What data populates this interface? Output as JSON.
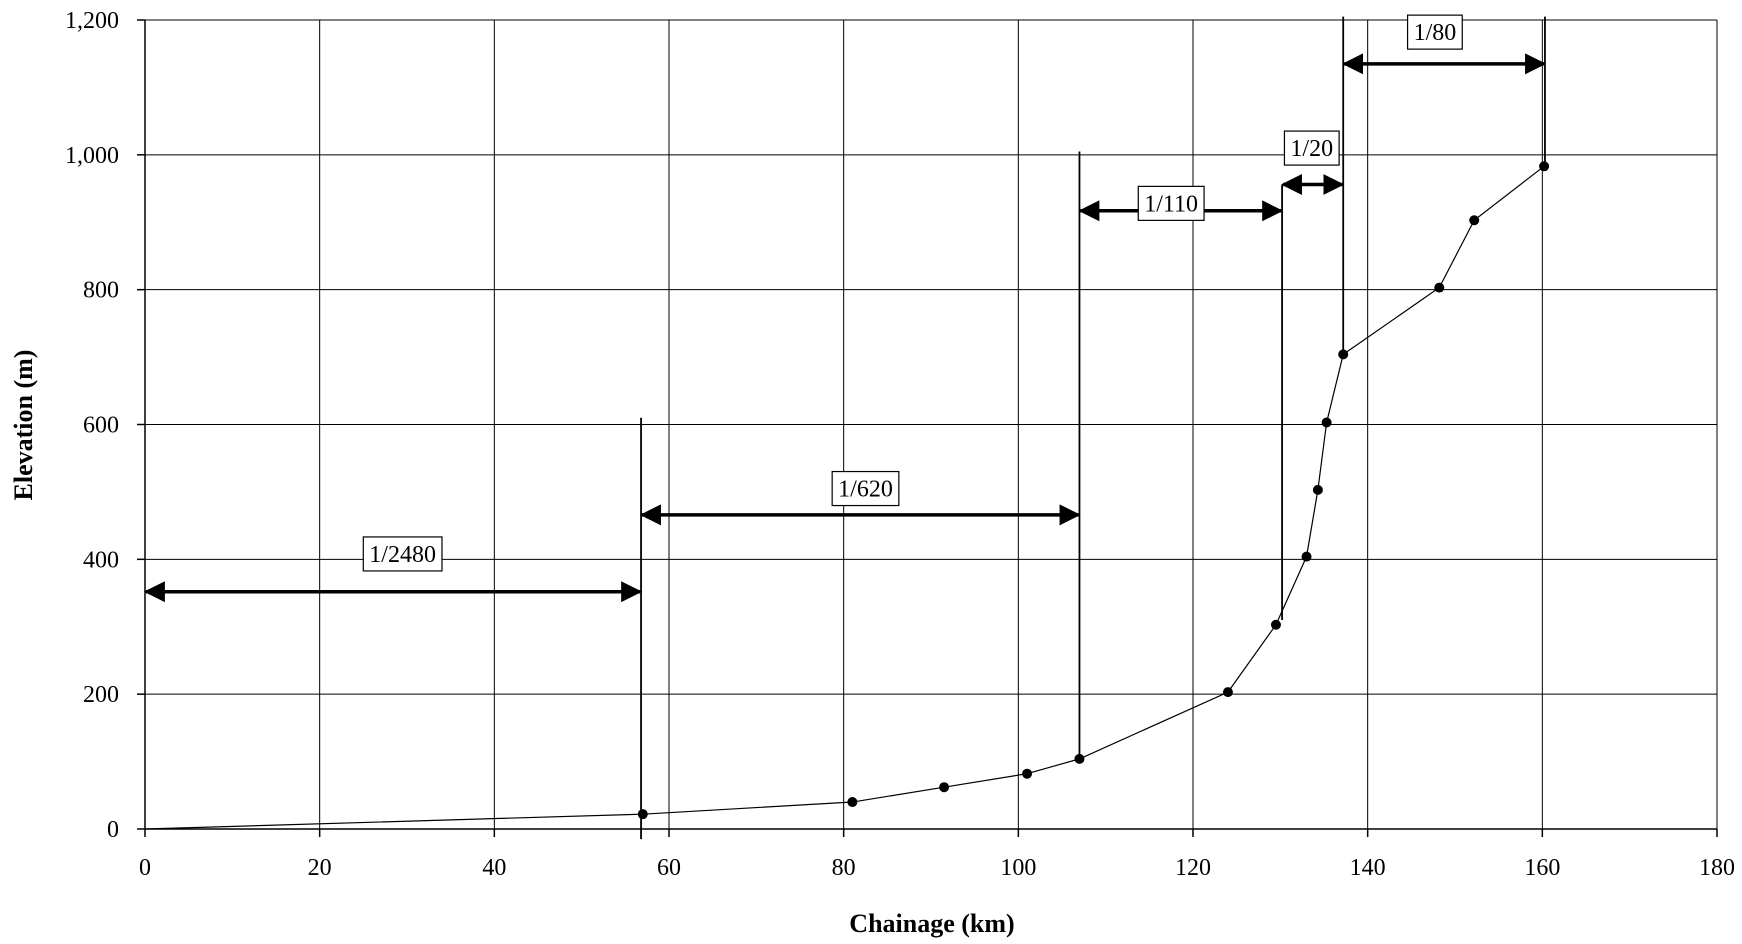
{
  "chart_data": {
    "type": "line",
    "title": "",
    "xlabel": "Chainage (km)",
    "ylabel": "Elevation (m)",
    "xlim": [
      0,
      180
    ],
    "ylim": [
      0,
      1200
    ],
    "x_ticks": [
      0,
      20,
      40,
      60,
      80,
      100,
      120,
      140,
      160,
      180
    ],
    "x_tick_labels": [
      "0",
      "20",
      "40",
      "60",
      "80",
      "100",
      "120",
      "140",
      "160",
      "180"
    ],
    "y_ticks": [
      0,
      200,
      400,
      600,
      800,
      1000,
      1200
    ],
    "y_tick_labels": [
      "0",
      "200",
      "400",
      "600",
      "800",
      "1,000",
      "1,200"
    ],
    "grid": true,
    "series": [
      {
        "points": [
          {
            "x": 0,
            "y": 0,
            "marker": false
          },
          {
            "x": 57,
            "y": 22,
            "marker": true
          },
          {
            "x": 81,
            "y": 40,
            "marker": true
          },
          {
            "x": 91.5,
            "y": 62,
            "marker": true
          },
          {
            "x": 101,
            "y": 82,
            "marker": true
          },
          {
            "x": 107,
            "y": 104,
            "marker": true
          },
          {
            "x": 124,
            "y": 203,
            "marker": true
          },
          {
            "x": 129.5,
            "y": 303,
            "marker": true
          },
          {
            "x": 133,
            "y": 404,
            "marker": true
          },
          {
            "x": 134.3,
            "y": 503,
            "marker": true
          },
          {
            "x": 135.3,
            "y": 603,
            "marker": true
          },
          {
            "x": 137.2,
            "y": 704,
            "marker": true
          },
          {
            "x": 148.2,
            "y": 803,
            "marker": true
          },
          {
            "x": 152.2,
            "y": 903,
            "marker": true
          },
          {
            "x": 160.2,
            "y": 983,
            "marker": true
          }
        ]
      }
    ],
    "boundaries": [
      {
        "x": 56.8,
        "y_top": 610,
        "y_bottom": -15
      },
      {
        "x": 107,
        "y_top": 1005,
        "y_bottom": 104
      },
      {
        "x": 130.2,
        "y_top": 955,
        "y_bottom": 310
      },
      {
        "x": 137.2,
        "y_top": 1205,
        "y_bottom": 704
      },
      {
        "x": 160.3,
        "y_top": 1205,
        "y_bottom": 990
      }
    ],
    "annotations": [
      {
        "text": "1/2480",
        "x_start": 0,
        "x_end": 56.8,
        "arrow_y": 352,
        "label_x": 29.5,
        "label_y": 408
      },
      {
        "text": "1/620",
        "x_start": 56.8,
        "x_end": 107,
        "arrow_y": 466,
        "label_x": 82.5,
        "label_y": 505
      },
      {
        "text": "1/110",
        "x_start": 107,
        "x_end": 130.2,
        "arrow_y": 917,
        "label_x": 117.5,
        "label_y": 928
      },
      {
        "text": "1/20",
        "x_start": 130.2,
        "x_end": 137.2,
        "arrow_y": 956,
        "label_x": 133.6,
        "label_y": 1010
      },
      {
        "text": "1/80",
        "x_start": 137.2,
        "x_end": 160.3,
        "arrow_y": 1135,
        "label_x": 147.7,
        "label_y": 1182
      }
    ]
  }
}
